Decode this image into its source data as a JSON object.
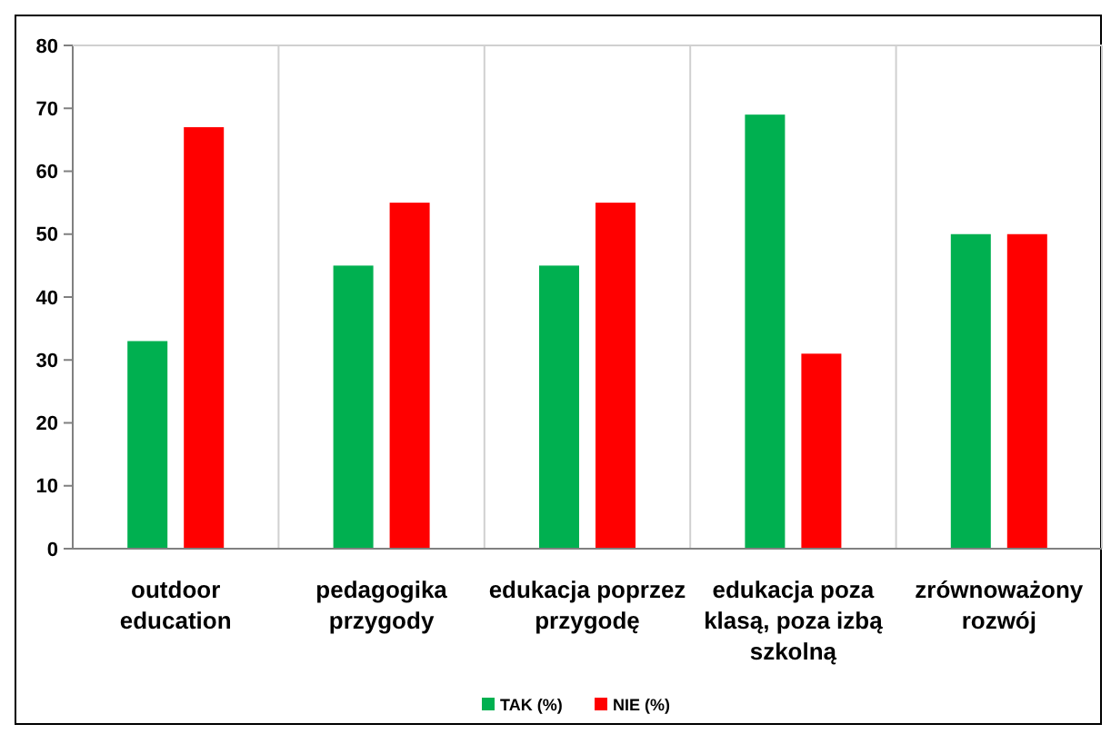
{
  "chart_data": {
    "type": "bar",
    "categories": [
      "outdoor education",
      "pedagogika przygody",
      "edukacja poprzez przygodę",
      "edukacja poza klasą, poza izbą szkolną",
      "zrównoważony rozwój"
    ],
    "series": [
      {
        "name": "TAK (%)",
        "color": "#00b050",
        "values": [
          33,
          45,
          45,
          69,
          50
        ]
      },
      {
        "name": "NIE (%)",
        "color": "#ff0000",
        "values": [
          67,
          55,
          55,
          31,
          50
        ]
      }
    ],
    "ylim": [
      0,
      80
    ],
    "yticks": [
      0,
      10,
      20,
      30,
      40,
      50,
      60,
      70,
      80
    ],
    "grid": "x",
    "legend": "bottom"
  }
}
